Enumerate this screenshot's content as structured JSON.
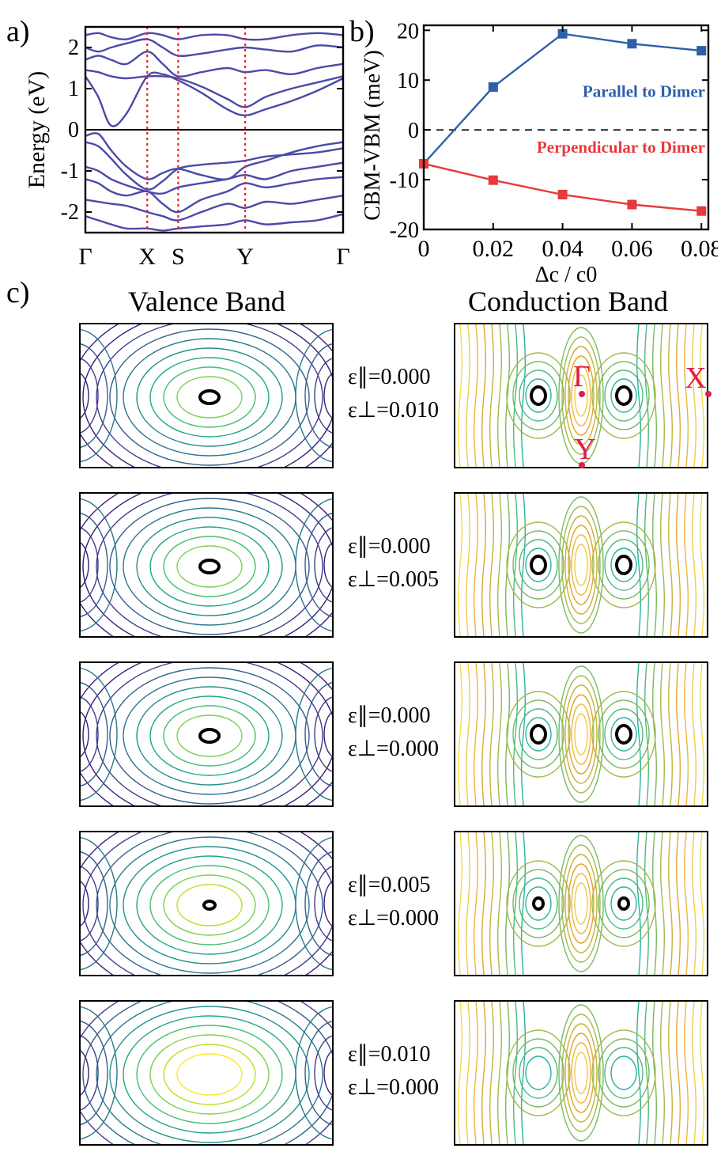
{
  "panel_labels": {
    "a": "a)",
    "b": "b)",
    "c": "c)"
  },
  "chart_data": [
    {
      "type": "line",
      "ylabel": "Energy (eV)",
      "xlabel": "",
      "ylim": [
        -2.5,
        2.5
      ],
      "yticks": [
        2,
        1,
        0,
        -1,
        -2
      ],
      "xticks": [
        "Γ",
        "X",
        "S",
        "Y",
        "Γ"
      ],
      "k_points": [
        0,
        0.24,
        0.36,
        0.62,
        1.0
      ],
      "fermi_level": 0,
      "x": [
        0,
        0.05,
        0.1,
        0.16,
        0.24,
        0.3,
        0.36,
        0.45,
        0.55,
        0.62,
        0.7,
        0.8,
        0.9,
        1.0
      ],
      "series": [
        {
          "values": [
            -0.15,
            -0.1,
            -0.5,
            -0.9,
            -1.2,
            -1.05,
            -0.95,
            -1.1,
            -1.2,
            -0.9,
            -0.75,
            -0.55,
            -0.4,
            -0.3
          ]
        },
        {
          "values": [
            -0.3,
            -0.4,
            -0.7,
            -1.1,
            -1.45,
            -1.25,
            -0.95,
            -0.85,
            -0.8,
            -0.75,
            -0.65,
            -0.6,
            -0.55,
            -0.45
          ]
        },
        {
          "values": [
            -0.9,
            -1.0,
            -1.2,
            -1.35,
            -1.5,
            -1.55,
            -1.4,
            -1.3,
            -1.2,
            -1.1,
            -1.2,
            -1.0,
            -0.9,
            -0.8
          ]
        },
        {
          "values": [
            -1.2,
            -1.3,
            -1.5,
            -1.6,
            -1.5,
            -1.8,
            -2.0,
            -1.7,
            -1.5,
            -1.3,
            -1.4,
            -1.3,
            -1.2,
            -1.15
          ]
        },
        {
          "values": [
            -1.7,
            -1.75,
            -1.8,
            -1.85,
            -2.0,
            -2.1,
            -2.2,
            -2.0,
            -1.8,
            -1.9,
            -1.75,
            -1.8,
            -1.7,
            -1.6
          ]
        },
        {
          "values": [
            -2.1,
            -2.2,
            -2.3,
            -2.4,
            -2.4,
            -2.45,
            -2.4,
            -2.35,
            -2.3,
            -2.2,
            -2.3,
            -2.25,
            -2.2,
            -2.05
          ]
        },
        {
          "values": [
            1.3,
            0.8,
            0.1,
            0.4,
            1.3,
            1.35,
            1.2,
            0.9,
            0.5,
            0.35,
            0.5,
            0.7,
            0.95,
            1.25
          ]
        },
        {
          "values": [
            1.45,
            1.4,
            1.3,
            1.25,
            1.3,
            1.3,
            1.25,
            1.05,
            0.75,
            0.55,
            0.8,
            1.0,
            1.15,
            1.3
          ]
        },
        {
          "values": [
            1.7,
            1.8,
            1.7,
            1.6,
            1.9,
            1.6,
            1.3,
            1.4,
            1.5,
            1.4,
            1.45,
            1.35,
            1.5,
            1.6
          ]
        },
        {
          "values": [
            2.0,
            1.9,
            2.0,
            2.1,
            2.2,
            2.0,
            1.8,
            1.85,
            1.95,
            2.0,
            1.95,
            1.9,
            2.05,
            2.0
          ]
        },
        {
          "values": [
            2.3,
            2.35,
            2.25,
            2.2,
            2.35,
            2.3,
            2.2,
            2.3,
            2.3,
            2.2,
            2.2,
            2.3,
            2.35,
            2.3
          ]
        }
      ]
    },
    {
      "type": "line",
      "xlabel": "Δc / c0",
      "ylabel": "CBM-VBM (meV)",
      "xlim": [
        0,
        0.082
      ],
      "ylim": [
        -20,
        21
      ],
      "xticks": [
        "0",
        "0.02",
        "0.04",
        "0.06",
        "0.08"
      ],
      "xtick_values": [
        0,
        0.02,
        0.04,
        0.06,
        0.08
      ],
      "yticks": [
        "20",
        "10",
        "0",
        "-10",
        "-20"
      ],
      "ytick_values": [
        20,
        10,
        0,
        -10,
        -20
      ],
      "x": [
        0,
        0.02,
        0.04,
        0.06,
        0.08
      ],
      "series": [
        {
          "name": "Parallel to Dimer",
          "values": [
            -6.8,
            8.6,
            19.3,
            17.3,
            15.9
          ]
        },
        {
          "name": "Perpendicular to Dimer",
          "values": [
            -6.8,
            -10.1,
            -13.0,
            -15.0,
            -16.3
          ]
        }
      ],
      "reference_line": 0
    },
    {
      "type": "heatmap",
      "columns": [
        "Valence Band",
        "Conduction Band"
      ],
      "rows": [
        {
          "eps_parallel": "ε∥=0.000",
          "eps_perp": "ε⊥=0.010"
        },
        {
          "eps_parallel": "ε∥=0.000",
          "eps_perp": "ε⊥=0.005"
        },
        {
          "eps_parallel": "ε∥=0.000",
          "eps_perp": "ε⊥=0.000"
        },
        {
          "eps_parallel": "ε∥=0.005",
          "eps_perp": "ε⊥=0.000"
        },
        {
          "eps_parallel": "ε∥=0.010",
          "eps_perp": "ε⊥=0.000"
        }
      ],
      "k_labels": {
        "gamma": "Γ",
        "x": "X",
        "y": "Y"
      }
    }
  ],
  "colors": {
    "bands": "#4a4aa8",
    "kline": "#e8242b",
    "parallel": "#2f5fab",
    "perpendicular": "#e8393b",
    "kpoint": "#e01e48"
  }
}
